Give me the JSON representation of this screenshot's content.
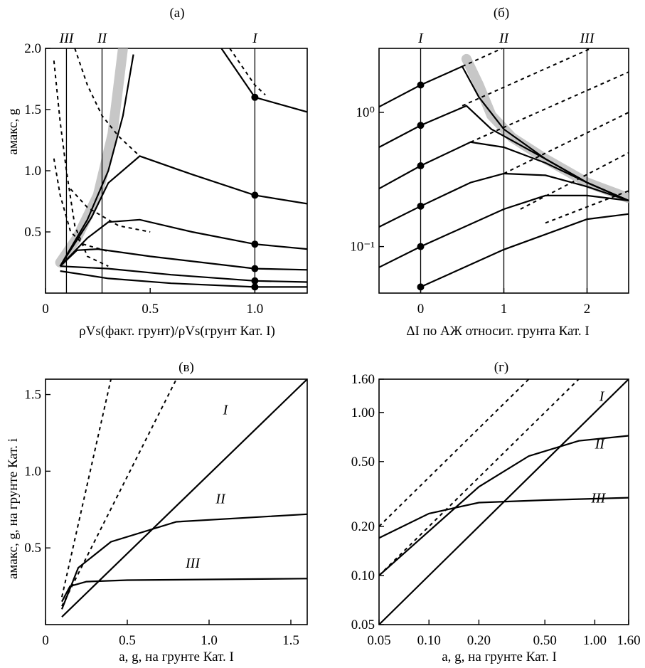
{
  "chart_data": [
    {
      "id": "a",
      "type": "line",
      "title": "(а)",
      "xlabel": "ρVs(факт. грунт)/ρVs(грунт Кат. I)",
      "ylabel": "aмакс, g",
      "xlim": [
        0,
        1.25
      ],
      "ylim": [
        0,
        2.0
      ],
      "xticks": [
        "0",
        "0.5",
        "1.0"
      ],
      "yticks": [
        "0.5",
        "1.0",
        "1.5",
        "2.0"
      ],
      "verticals": [
        {
          "label": "III",
          "x": 0.1
        },
        {
          "label": "II",
          "x": 0.27
        },
        {
          "label": "I",
          "x": 1.0
        }
      ],
      "band": [
        [
          0.07,
          0.25
        ],
        [
          0.15,
          0.45
        ],
        [
          0.25,
          0.8
        ],
        [
          0.32,
          1.3
        ],
        [
          0.37,
          2.0
        ]
      ],
      "series": [
        {
          "style": "solid",
          "points": [
            [
              0.07,
              0.22
            ],
            [
              0.2,
              0.6
            ],
            [
              0.3,
              1.0
            ],
            [
              0.37,
              1.45
            ],
            [
              0.42,
              1.95
            ]
          ]
        },
        {
          "style": "solid",
          "points": [
            [
              0.07,
              0.22
            ],
            [
              0.22,
              0.62
            ],
            [
              0.3,
              0.9
            ],
            [
              0.45,
              1.12
            ],
            [
              0.7,
              0.97
            ],
            [
              1.0,
              0.8
            ],
            [
              1.25,
              0.73
            ]
          ]
        },
        {
          "style": "solid",
          "points": [
            [
              0.07,
              0.22
            ],
            [
              0.2,
              0.45
            ],
            [
              0.3,
              0.58
            ],
            [
              0.45,
              0.6
            ],
            [
              0.7,
              0.5
            ],
            [
              1.0,
              0.4
            ],
            [
              1.25,
              0.36
            ]
          ]
        },
        {
          "style": "solid",
          "points": [
            [
              0.07,
              0.22
            ],
            [
              0.15,
              0.35
            ],
            [
              0.25,
              0.36
            ],
            [
              0.5,
              0.3
            ],
            [
              1.0,
              0.2
            ],
            [
              1.25,
              0.19
            ]
          ]
        },
        {
          "style": "solid",
          "points": [
            [
              0.07,
              0.22
            ],
            [
              0.3,
              0.2
            ],
            [
              0.6,
              0.15
            ],
            [
              1.0,
              0.1
            ],
            [
              1.25,
              0.09
            ]
          ]
        },
        {
          "style": "solid",
          "points": [
            [
              0.07,
              0.18
            ],
            [
              0.3,
              0.12
            ],
            [
              0.6,
              0.08
            ],
            [
              1.0,
              0.05
            ],
            [
              1.25,
              0.05
            ]
          ]
        },
        {
          "style": "solid",
          "points": [
            [
              0.84,
              2.0
            ],
            [
              1.0,
              1.6
            ],
            [
              1.25,
              1.48
            ]
          ]
        },
        {
          "style": "dash",
          "points": [
            [
              0.04,
              1.9
            ],
            [
              0.07,
              1.4
            ],
            [
              0.1,
              1.0
            ],
            [
              0.14,
              0.55
            ],
            [
              0.2,
              0.3
            ],
            [
              0.3,
              0.22
            ]
          ]
        },
        {
          "style": "dash",
          "points": [
            [
              0.14,
              2.0
            ],
            [
              0.2,
              1.7
            ],
            [
              0.27,
              1.45
            ],
            [
              0.35,
              1.28
            ],
            [
              0.45,
              1.12
            ]
          ]
        },
        {
          "style": "dash",
          "points": [
            [
              0.04,
              1.1
            ],
            [
              0.07,
              0.8
            ],
            [
              0.12,
              0.5
            ],
            [
              0.18,
              0.4
            ],
            [
              0.3,
              0.34
            ]
          ]
        },
        {
          "style": "dash",
          "points": [
            [
              0.88,
              2.0
            ],
            [
              1.0,
              1.7
            ],
            [
              1.05,
              1.62
            ]
          ]
        },
        {
          "style": "dash",
          "points": [
            [
              0.12,
              0.85
            ],
            [
              0.2,
              0.7
            ],
            [
              0.35,
              0.55
            ],
            [
              0.5,
              0.5
            ]
          ]
        }
      ],
      "markers": [
        [
          1.0,
          1.6
        ],
        [
          1.0,
          0.8
        ],
        [
          1.0,
          0.4
        ],
        [
          1.0,
          0.2
        ],
        [
          1.0,
          0.1
        ],
        [
          1.0,
          0.05
        ]
      ]
    },
    {
      "id": "b",
      "type": "line",
      "title": "(б)",
      "xlabel": "ΔI по АЖ относит. грунта Кат. I",
      "xlim": [
        -0.5,
        2.5
      ],
      "ylim": [
        0.045,
        3.0
      ],
      "yscale": "log",
      "xticks": [
        "0",
        "1",
        "2"
      ],
      "yticks": [
        "10⁻¹",
        "10⁰"
      ],
      "verticals": [
        {
          "label": "I",
          "x": 0
        },
        {
          "label": "II",
          "x": 1
        },
        {
          "label": "III",
          "x": 2
        }
      ],
      "band": [
        [
          0.55,
          2.5
        ],
        [
          0.7,
          1.6
        ],
        [
          0.85,
          0.95
        ],
        [
          1.1,
          0.65
        ],
        [
          1.5,
          0.45
        ],
        [
          2.0,
          0.3
        ],
        [
          2.5,
          0.23
        ]
      ],
      "series": [
        {
          "style": "solid",
          "points": [
            [
              -0.5,
              1.1
            ],
            [
              0,
              1.6
            ],
            [
              0.5,
              2.2
            ],
            [
              0.7,
              1.3
            ],
            [
              1.0,
              0.75
            ],
            [
              1.5,
              0.45
            ],
            [
              2.0,
              0.3
            ],
            [
              2.5,
              0.22
            ]
          ]
        },
        {
          "style": "solid",
          "points": [
            [
              -0.5,
              0.55
            ],
            [
              0,
              0.8
            ],
            [
              0.55,
              1.12
            ],
            [
              0.85,
              0.75
            ],
            [
              1.5,
              0.45
            ],
            [
              2.0,
              0.3
            ],
            [
              2.5,
              0.22
            ]
          ]
        },
        {
          "style": "solid",
          "points": [
            [
              -0.5,
              0.27
            ],
            [
              0,
              0.4
            ],
            [
              0.6,
              0.6
            ],
            [
              1.0,
              0.55
            ],
            [
              1.5,
              0.42
            ],
            [
              2.0,
              0.3
            ],
            [
              2.5,
              0.22
            ]
          ]
        },
        {
          "style": "solid",
          "points": [
            [
              -0.5,
              0.14
            ],
            [
              0,
              0.2
            ],
            [
              0.6,
              0.3
            ],
            [
              1.0,
              0.35
            ],
            [
              1.5,
              0.34
            ],
            [
              2.0,
              0.28
            ],
            [
              2.5,
              0.22
            ]
          ]
        },
        {
          "style": "solid",
          "points": [
            [
              -0.5,
              0.07
            ],
            [
              0,
              0.1
            ],
            [
              1.0,
              0.19
            ],
            [
              1.5,
              0.24
            ],
            [
              2.0,
              0.24
            ],
            [
              2.5,
              0.22
            ]
          ]
        },
        {
          "style": "solid",
          "points": [
            [
              0,
              0.05
            ],
            [
              1.0,
              0.095
            ],
            [
              2.0,
              0.16
            ],
            [
              2.5,
              0.175
            ]
          ]
        },
        {
          "style": "dash",
          "points": [
            [
              0.5,
              2.2
            ],
            [
              2.5,
              8.0
            ]
          ]
        },
        {
          "style": "dash",
          "points": [
            [
              0.5,
              1.12
            ],
            [
              2.5,
              4.0
            ]
          ]
        },
        {
          "style": "dash",
          "points": [
            [
              0.6,
              0.6
            ],
            [
              2.5,
              2.0
            ]
          ]
        },
        {
          "style": "dash",
          "points": [
            [
              1.0,
              0.35
            ],
            [
              2.5,
              1.0
            ]
          ]
        },
        {
          "style": "dash",
          "points": [
            [
              1.2,
              0.19
            ],
            [
              2.5,
              0.5
            ]
          ]
        },
        {
          "style": "dash",
          "points": [
            [
              1.5,
              0.15
            ],
            [
              2.5,
              0.26
            ]
          ]
        }
      ],
      "markers": [
        [
          0,
          1.6
        ],
        [
          0,
          0.8
        ],
        [
          0,
          0.4
        ],
        [
          0,
          0.2
        ],
        [
          0,
          0.1
        ],
        [
          0,
          0.05
        ]
      ]
    },
    {
      "id": "c",
      "type": "line",
      "title": "(в)",
      "xlabel": "a, g, на грунте Кат. I",
      "ylabel": "aмакс, g, на грунте Кат. i",
      "xlim": [
        0,
        1.6
      ],
      "ylim": [
        0,
        1.6
      ],
      "xticks": [
        "0",
        "0.5",
        "1.0",
        "1.5"
      ],
      "yticks": [
        "0.5",
        "1.0",
        "1.5"
      ],
      "series": [
        {
          "name": "I",
          "style": "solid",
          "points": [
            [
              0.1,
              0.05
            ],
            [
              1.6,
              1.6
            ]
          ]
        },
        {
          "name": "II",
          "style": "solid",
          "points": [
            [
              0.1,
              0.1
            ],
            [
              0.2,
              0.37
            ],
            [
              0.4,
              0.54
            ],
            [
              0.8,
              0.67
            ],
            [
              1.6,
              0.72
            ]
          ]
        },
        {
          "name": "III",
          "style": "solid",
          "points": [
            [
              0.1,
              0.15
            ],
            [
              0.15,
              0.25
            ],
            [
              0.25,
              0.28
            ],
            [
              0.5,
              0.29
            ],
            [
              1.6,
              0.3
            ]
          ]
        },
        {
          "style": "dash",
          "points": [
            [
              0.1,
              0.18
            ],
            [
              0.4,
              1.6
            ]
          ]
        },
        {
          "style": "dash",
          "points": [
            [
              0.1,
              0.12
            ],
            [
              0.8,
              1.6
            ]
          ]
        }
      ],
      "line_labels": [
        {
          "text": "I",
          "x": 1.1,
          "y": 1.37
        },
        {
          "text": "II",
          "x": 1.07,
          "y": 0.79
        },
        {
          "text": "III",
          "x": 0.9,
          "y": 0.37
        }
      ]
    },
    {
      "id": "d",
      "type": "line",
      "title": "(г)",
      "xlabel": "a, g, на грунте Кат. I",
      "xlim": [
        0.05,
        1.6
      ],
      "ylim": [
        0.05,
        1.6
      ],
      "xscale": "log",
      "yscale": "log",
      "xticks": [
        "0.05",
        "0.10",
        "0.20",
        "0.50",
        "1.00",
        "1.60"
      ],
      "yticks": [
        "0.05",
        "0.10",
        "0.20",
        "0.50",
        "1.00",
        "1.60"
      ],
      "series": [
        {
          "name": "I",
          "style": "solid",
          "points": [
            [
              0.05,
              0.05
            ],
            [
              1.6,
              1.6
            ]
          ]
        },
        {
          "name": "II",
          "style": "solid",
          "points": [
            [
              0.05,
              0.1
            ],
            [
              0.2,
              0.35
            ],
            [
              0.4,
              0.54
            ],
            [
              0.8,
              0.67
            ],
            [
              1.6,
              0.72
            ]
          ]
        },
        {
          "name": "III",
          "style": "solid",
          "points": [
            [
              0.05,
              0.17
            ],
            [
              0.1,
              0.24
            ],
            [
              0.2,
              0.28
            ],
            [
              0.5,
              0.29
            ],
            [
              1.6,
              0.3
            ]
          ]
        },
        {
          "style": "dash",
          "points": [
            [
              0.05,
              0.2
            ],
            [
              0.4,
              1.6
            ]
          ]
        },
        {
          "style": "dash",
          "points": [
            [
              0.05,
              0.1
            ],
            [
              0.8,
              1.6
            ]
          ]
        }
      ],
      "line_labels": [
        {
          "text": "I",
          "x": 1.1,
          "y": 1.18
        },
        {
          "text": "II",
          "x": 1.07,
          "y": 0.6
        },
        {
          "text": "III",
          "x": 1.05,
          "y": 0.28
        }
      ]
    }
  ]
}
